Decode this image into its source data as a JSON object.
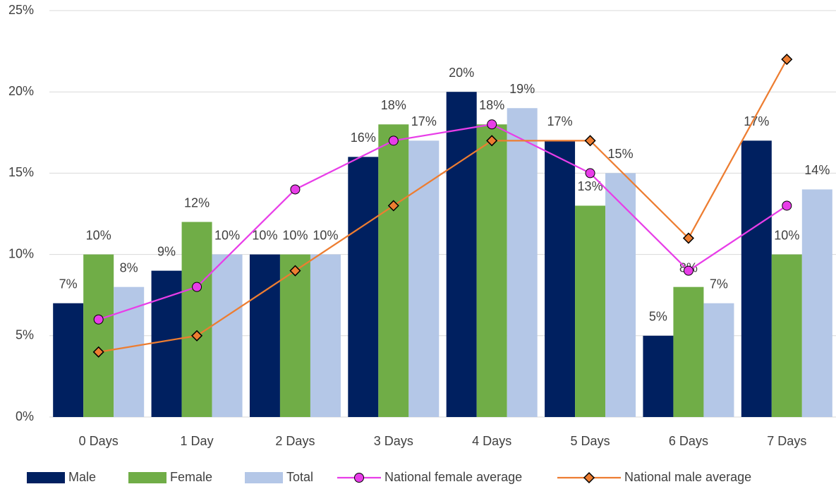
{
  "chart_data": {
    "type": "bar",
    "categories": [
      "0 Days",
      "1 Day",
      "2 Days",
      "3 Days",
      "4 Days",
      "5 Days",
      "6 Days",
      "7 Days"
    ],
    "series": [
      {
        "name": "Male",
        "type": "bar",
        "color": "#002060",
        "values": [
          7,
          9,
          10,
          16,
          20,
          17,
          5,
          17
        ],
        "value_labels": [
          "7%",
          "9%",
          "10%",
          "16%",
          "20%",
          "17%",
          "5%",
          "17%"
        ]
      },
      {
        "name": "Female",
        "type": "bar",
        "color": "#70ad47",
        "values": [
          10,
          12,
          10,
          18,
          18,
          13,
          8,
          10
        ],
        "value_labels": [
          "10%",
          "12%",
          "10%",
          "18%",
          "18%",
          "13%",
          "8%",
          "10%"
        ]
      },
      {
        "name": "Total",
        "type": "bar",
        "color": "#b4c7e7",
        "values": [
          8,
          10,
          10,
          17,
          19,
          15,
          7,
          14
        ],
        "value_labels": [
          "8%",
          "10%",
          "10%",
          "17%",
          "19%",
          "15%",
          "7%",
          "14%"
        ]
      },
      {
        "name": "National female average",
        "type": "line",
        "marker": "circle",
        "color": "#e83de8",
        "values": [
          6,
          8,
          14,
          17,
          18,
          15,
          9,
          13
        ]
      },
      {
        "name": "National male average",
        "type": "line",
        "marker": "diamond",
        "color": "#ed7d31",
        "values": [
          4,
          5,
          9,
          13,
          17,
          17,
          11,
          22
        ]
      }
    ],
    "ylim": [
      0,
      25
    ],
    "yticks": [
      {
        "value": 0,
        "label": "0%"
      },
      {
        "value": 5,
        "label": "5%"
      },
      {
        "value": 10,
        "label": "10%"
      },
      {
        "value": 15,
        "label": "15%"
      },
      {
        "value": 20,
        "label": "20%"
      },
      {
        "value": 25,
        "label": "25%"
      }
    ],
    "grid": true,
    "legend": "bottom"
  }
}
